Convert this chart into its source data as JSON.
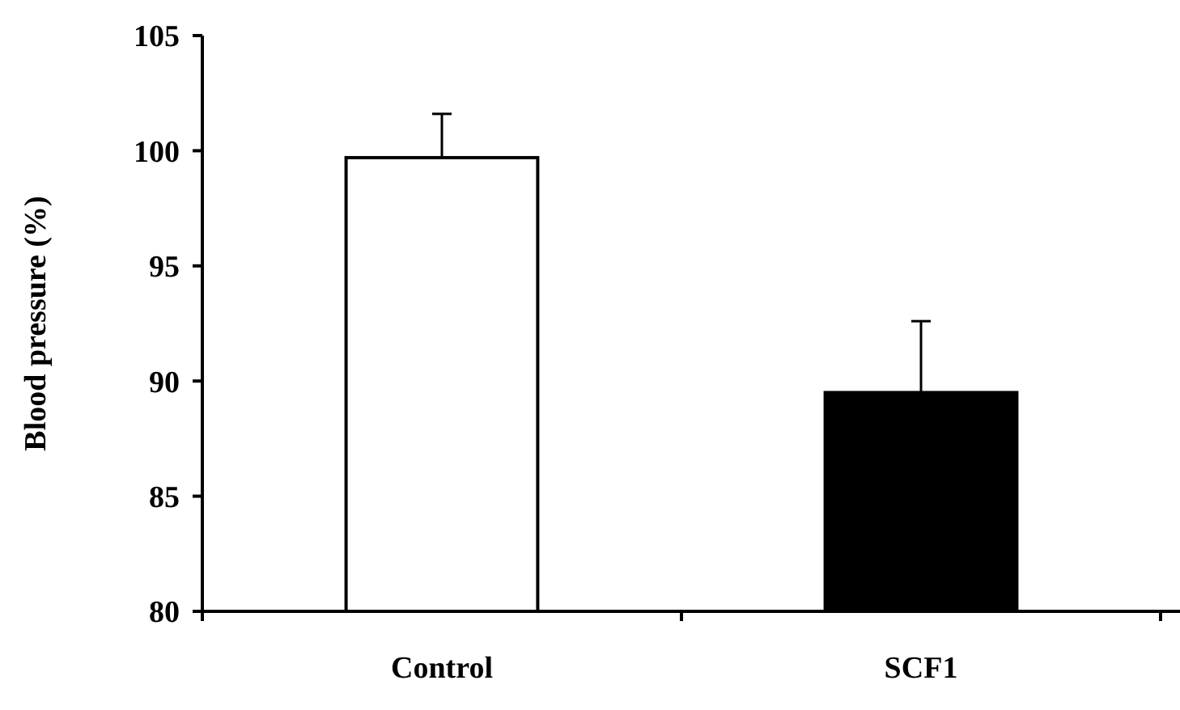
{
  "chart_data": {
    "type": "bar",
    "ylabel": "Blood pressure (%)",
    "categories": [
      "Control",
      "SCF1"
    ],
    "values": [
      99.7,
      89.5
    ],
    "colors": [
      "#ffffff",
      "#000000"
    ],
    "errors": [
      1.9,
      3.1
    ],
    "ylim": [
      80,
      105
    ],
    "yticks": [
      80,
      85,
      90,
      95,
      100,
      105
    ]
  }
}
